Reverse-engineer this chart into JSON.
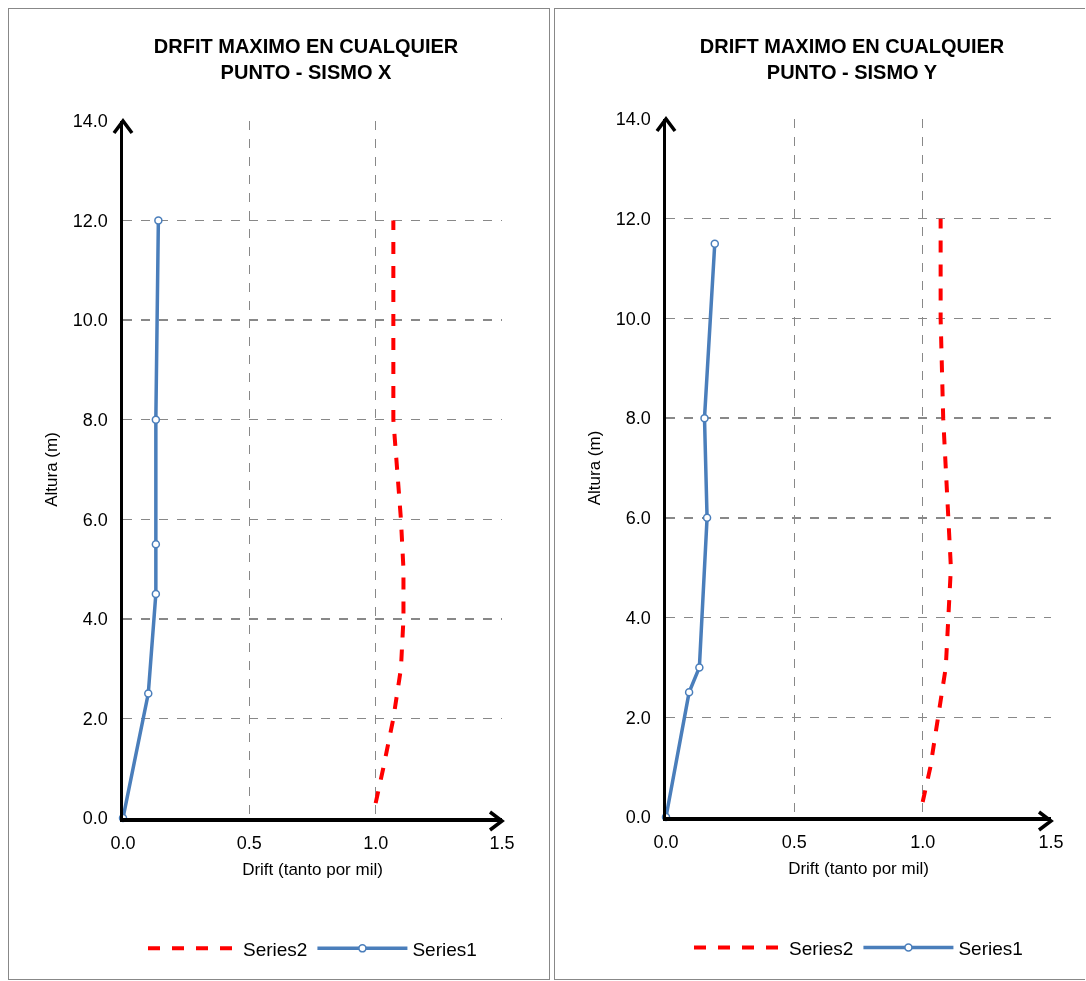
{
  "chart_data": [
    {
      "type": "line",
      "title": "DRFIT MAXIMO EN CUALQUIER\nPUNTO - SISMO X",
      "xlabel": "Drift (tanto por mil)",
      "ylabel": "Altura (m)",
      "xlim": [
        0,
        1.5
      ],
      "ylim": [
        0,
        14
      ],
      "xticks": [
        {
          "value": 0,
          "label": "0.0"
        },
        {
          "value": 0.5,
          "label": "0.5"
        },
        {
          "value": 1,
          "label": "1.0"
        },
        {
          "value": 1.5,
          "label": "1.5"
        }
      ],
      "yticks": [
        {
          "value": 0,
          "label": "0.0"
        },
        {
          "value": 2,
          "label": "2.0"
        },
        {
          "value": 4,
          "label": "4.0"
        },
        {
          "value": 6,
          "label": "6.0"
        },
        {
          "value": 8,
          "label": "8.0"
        },
        {
          "value": 10,
          "label": "10.0"
        },
        {
          "value": 12,
          "label": "12.0"
        },
        {
          "value": 14,
          "label": "14.0"
        }
      ],
      "grid": true,
      "legend": "bottom",
      "series": [
        {
          "name": "Series2",
          "color": "#ff0000",
          "line_style": "dashed",
          "marker": "none",
          "x": [
            1.0,
            1.03,
            1.07,
            1.1,
            1.11,
            1.11,
            1.1,
            1.07,
            1.07,
            1.07
          ],
          "values": [
            0.3,
            1,
            2,
            3,
            4,
            5,
            6,
            8,
            10,
            12
          ]
        },
        {
          "name": "Series1",
          "color": "#4a7ebb",
          "line_style": "solid",
          "marker": "circle",
          "x": [
            0,
            0.1,
            0.13,
            0.13,
            0.13,
            0.14
          ],
          "values": [
            0,
            2.5,
            4.5,
            5.5,
            8,
            12
          ]
        }
      ]
    },
    {
      "type": "line",
      "title": "DRIFT MAXIMO EN CUALQUIER\nPUNTO - SISMO Y",
      "xlabel": "Drift (tanto por mil)",
      "ylabel": "Altura (m)",
      "xlim": [
        0,
        1.5
      ],
      "ylim": [
        0,
        14
      ],
      "xticks": [
        {
          "value": 0,
          "label": "0.0"
        },
        {
          "value": 0.5,
          "label": "0.5"
        },
        {
          "value": 1,
          "label": "1.0"
        },
        {
          "value": 1.5,
          "label": "1.5"
        }
      ],
      "yticks": [
        {
          "value": 0,
          "label": "0.0"
        },
        {
          "value": 2,
          "label": "2.0"
        },
        {
          "value": 4,
          "label": "4.0"
        },
        {
          "value": 6,
          "label": "6.0"
        },
        {
          "value": 8,
          "label": "8.0"
        },
        {
          "value": 10,
          "label": "10.0"
        },
        {
          "value": 12,
          "label": "12.0"
        },
        {
          "value": 14,
          "label": "14.0"
        }
      ],
      "grid": true,
      "legend": "bottom",
      "series": [
        {
          "name": "Series2",
          "color": "#ff0000",
          "line_style": "dashed",
          "marker": "none",
          "x": [
            1.0,
            1.03,
            1.06,
            1.09,
            1.1,
            1.11,
            1.1,
            1.08,
            1.07,
            1.07
          ],
          "values": [
            0.3,
            1,
            2,
            3,
            4,
            5,
            6,
            8,
            10,
            12
          ]
        },
        {
          "name": "Series1",
          "color": "#4a7ebb",
          "line_style": "solid",
          "marker": "circle",
          "x": [
            0,
            0.09,
            0.13,
            0.16,
            0.15,
            0.19
          ],
          "values": [
            0,
            2.5,
            3,
            6,
            8,
            11.5
          ]
        }
      ]
    }
  ]
}
